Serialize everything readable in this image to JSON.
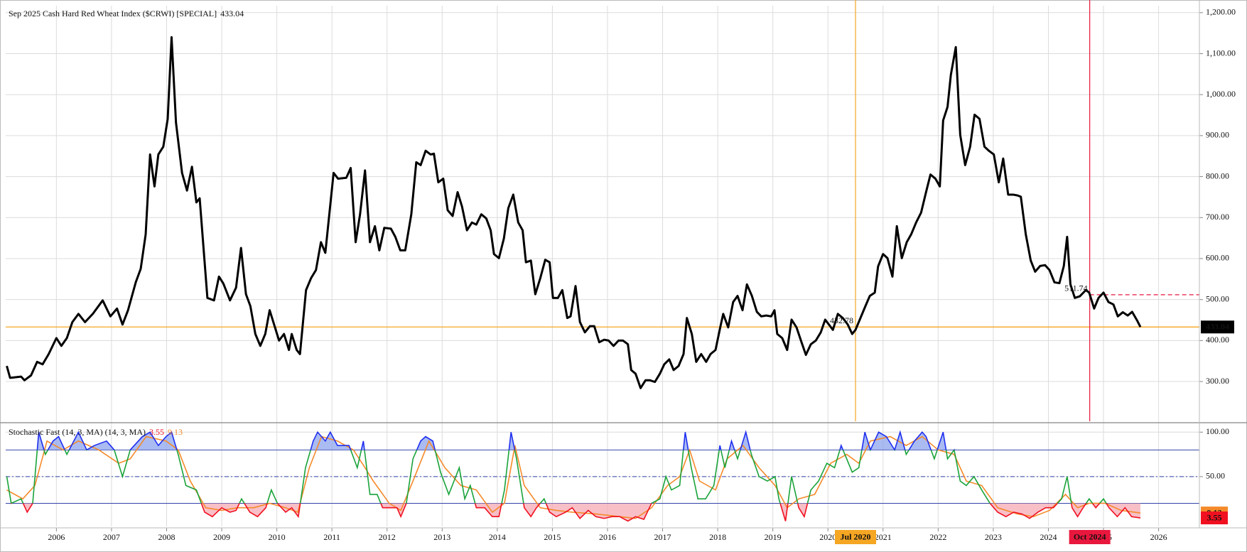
{
  "chart_data": [
    {
      "type": "line",
      "title": "Sep 2025 Cash Hard Red Wheat Index ($CRWI) [SPECIAL]",
      "color": "#000000",
      "last_color": "#f5a623",
      "grid": true,
      "xlim": [
        2005.08,
        2026.74
      ],
      "xticks": [
        2006,
        2007,
        2008,
        2009,
        2010,
        2011,
        2012,
        2013,
        2014,
        2015,
        2016,
        2017,
        2018,
        2019,
        2020,
        2021,
        2022,
        2023,
        2024,
        2025,
        2026
      ],
      "ylim": [
        203,
        1217
      ],
      "yticks": [
        {
          "value": 300,
          "label": "300.00"
        },
        {
          "value": 400,
          "label": "400.00"
        },
        {
          "value": 500,
          "label": "500.00"
        },
        {
          "value": 600,
          "label": "600.00"
        },
        {
          "value": 700,
          "label": "700.00"
        },
        {
          "value": 800,
          "label": "800.00"
        },
        {
          "value": 900,
          "label": "900.00"
        },
        {
          "value": 1000,
          "label": "1,000.00"
        },
        {
          "value": 1100,
          "label": "1,100.00"
        },
        {
          "value": 1200,
          "label": "1,200.00"
        }
      ],
      "x": [
        2005.1,
        2005.16,
        2005.36,
        2005.42,
        2005.54,
        2005.65,
        2005.75,
        2005.86,
        2006.0,
        2006.09,
        2006.19,
        2006.29,
        2006.4,
        2006.52,
        2006.66,
        2006.84,
        2006.98,
        2007.1,
        2007.2,
        2007.3,
        2007.44,
        2007.53,
        2007.62,
        2007.7,
        2007.78,
        2007.85,
        2007.94,
        2008.02,
        2008.09,
        2008.17,
        2008.28,
        2008.37,
        2008.46,
        2008.54,
        2008.6,
        2008.74,
        2008.86,
        2008.95,
        2009.03,
        2009.15,
        2009.26,
        2009.35,
        2009.44,
        2009.52,
        2009.61,
        2009.7,
        2009.79,
        2009.87,
        2009.96,
        2010.04,
        2010.13,
        2010.22,
        2010.27,
        2010.36,
        2010.42,
        2010.53,
        2010.62,
        2010.71,
        2010.8,
        2010.88,
        2010.97,
        2011.03,
        2011.11,
        2011.26,
        2011.34,
        2011.43,
        2011.51,
        2011.6,
        2011.69,
        2011.78,
        2011.86,
        2011.95,
        2012.07,
        2012.15,
        2012.24,
        2012.33,
        2012.44,
        2012.53,
        2012.61,
        2012.7,
        2012.79,
        2012.85,
        2012.93,
        2013.02,
        2013.1,
        2013.19,
        2013.28,
        2013.36,
        2013.45,
        2013.54,
        2013.62,
        2013.71,
        2013.8,
        2013.88,
        2013.94,
        2014.03,
        2014.12,
        2014.2,
        2014.29,
        2014.38,
        2014.46,
        2014.52,
        2014.61,
        2014.69,
        2014.78,
        2014.87,
        2014.95,
        2015.01,
        2015.1,
        2015.18,
        2015.27,
        2015.33,
        2015.42,
        2015.5,
        2015.59,
        2015.68,
        2015.76,
        2015.85,
        2015.94,
        2016.02,
        2016.11,
        2016.2,
        2016.28,
        2016.37,
        2016.43,
        2016.51,
        2016.6,
        2016.69,
        2016.77,
        2016.86,
        2016.95,
        2017.03,
        2017.12,
        2017.2,
        2017.29,
        2017.38,
        2017.44,
        2017.53,
        2017.61,
        2017.7,
        2017.79,
        2017.87,
        2017.96,
        2018.05,
        2018.1,
        2018.19,
        2018.28,
        2018.36,
        2018.45,
        2018.53,
        2018.62,
        2018.71,
        2018.79,
        2018.88,
        2018.97,
        2019.03,
        2019.08,
        2019.17,
        2019.26,
        2019.34,
        2019.43,
        2019.52,
        2019.6,
        2019.69,
        2019.78,
        2019.87,
        2019.95,
        2020.04,
        2020.09,
        2020.18,
        2020.27,
        2020.36,
        2020.44,
        2020.5,
        2020.59,
        2020.68,
        2020.76,
        2020.85,
        2020.91,
        2021.0,
        2021.08,
        2021.17,
        2021.25,
        2021.34,
        2021.43,
        2021.51,
        2021.6,
        2021.69,
        2021.78,
        2021.86,
        2021.95,
        2022.03,
        2022.09,
        2022.17,
        2022.23,
        2022.32,
        2022.4,
        2022.49,
        2022.58,
        2022.66,
        2022.75,
        2022.84,
        2022.92,
        2023.01,
        2023.1,
        2023.18,
        2023.27,
        2023.36,
        2023.44,
        2023.5,
        2023.59,
        2023.68,
        2023.76,
        2023.85,
        2023.94,
        2024.02,
        2024.11,
        2024.2,
        2024.28,
        2024.34,
        2024.4,
        2024.48,
        2024.57,
        2024.68,
        2024.74,
        2024.83,
        2024.91,
        2025.0,
        2025.09,
        2025.18,
        2025.26,
        2025.35,
        2025.44,
        2025.52,
        2025.61,
        2025.67
      ],
      "values": [
        338,
        309,
        312,
        303,
        315,
        348,
        342,
        367,
        406,
        387,
        406,
        445,
        465,
        445,
        465,
        498,
        459,
        478,
        439,
        474,
        542,
        575,
        659,
        854,
        776,
        854,
        873,
        941,
        1140,
        932,
        809,
        766,
        824,
        737,
        747,
        504,
        498,
        556,
        539,
        498,
        529,
        626,
        513,
        484,
        416,
        387,
        416,
        474,
        435,
        400,
        416,
        377,
        416,
        377,
        367,
        523,
        552,
        572,
        640,
        614,
        731,
        809,
        795,
        797,
        821,
        640,
        708,
        815,
        640,
        679,
        620,
        675,
        673,
        653,
        620,
        620,
        708,
        835,
        828,
        863,
        854,
        856,
        786,
        795,
        718,
        704,
        762,
        727,
        669,
        688,
        683,
        708,
        698,
        669,
        611,
        601,
        649,
        723,
        756,
        688,
        669,
        591,
        595,
        513,
        552,
        597,
        591,
        504,
        504,
        523,
        455,
        459,
        533,
        445,
        420,
        435,
        435,
        396,
        402,
        400,
        387,
        400,
        400,
        391,
        328,
        319,
        284,
        303,
        303,
        299,
        319,
        342,
        354,
        328,
        338,
        367,
        455,
        416,
        348,
        367,
        348,
        367,
        377,
        435,
        465,
        432,
        494,
        509,
        474,
        537,
        509,
        470,
        459,
        461,
        459,
        474,
        416,
        406,
        377,
        451,
        432,
        396,
        365,
        391,
        400,
        420,
        451,
        435,
        426,
        465,
        455,
        439,
        416,
        426,
        455,
        484,
        509,
        517,
        581,
        611,
        601,
        556,
        679,
        601,
        640,
        659,
        688,
        712,
        762,
        805,
        795,
        776,
        937,
        970,
        1048,
        1116,
        902,
        828,
        873,
        951,
        941,
        873,
        863,
        854,
        786,
        844,
        756,
        756,
        754,
        751,
        659,
        595,
        568,
        582,
        584,
        572,
        542,
        540,
        582,
        653,
        537,
        504,
        508,
        523,
        517,
        478,
        504,
        517,
        494,
        488,
        459,
        469,
        461,
        470,
        449,
        433.04
      ],
      "cursors": [
        {
          "x": 2020.5,
          "label": "Jul 2020",
          "value": 432.78,
          "color": "#f5a623",
          "dashed": false
        },
        {
          "x": 2024.75,
          "label": "Oct 2024",
          "value": 511.74,
          "color": "#e8173d",
          "dashed": true
        }
      ]
    },
    {
      "type": "stochastic",
      "title": "Stochastic  Fast (14, 3, MA)  (14, 3, MA)",
      "grid": true,
      "xlim": [
        2005.08,
        2026.74
      ],
      "ylim": [
        -6,
        109
      ],
      "yticks": [
        {
          "value": 50,
          "label": "50.00"
        },
        {
          "value": 100,
          "label": "100.00"
        }
      ],
      "overbought": 80,
      "oversold": 20,
      "midline": 50,
      "level_color": "#3344aa",
      "series": [
        {
          "color": "#1aa33a",
          "above_color": "#1f2ff0",
          "below_color": "#f01020",
          "above_fill": "#8ea4ee",
          "below_fill": "#f6a9b4",
          "x": [
            2005.1,
            2005.18,
            2005.36,
            2005.47,
            2005.57,
            2005.68,
            2005.8,
            2005.94,
            2006.04,
            2006.19,
            2006.4,
            2006.55,
            2006.69,
            2006.91,
            2007.05,
            2007.2,
            2007.34,
            2007.56,
            2007.7,
            2007.85,
            2007.99,
            2008.09,
            2008.21,
            2008.35,
            2008.54,
            2008.69,
            2008.83,
            2009.0,
            2009.15,
            2009.26,
            2009.36,
            2009.51,
            2009.65,
            2009.8,
            2009.9,
            2010.01,
            2010.16,
            2010.27,
            2010.39,
            2010.52,
            2010.66,
            2010.74,
            2010.88,
            2010.97,
            2011.1,
            2011.31,
            2011.46,
            2011.57,
            2011.69,
            2011.82,
            2011.92,
            2012.04,
            2012.18,
            2012.25,
            2012.35,
            2012.47,
            2012.61,
            2012.7,
            2012.83,
            2012.97,
            2013.12,
            2013.31,
            2013.41,
            2013.51,
            2013.62,
            2013.77,
            2013.91,
            2014.03,
            2014.13,
            2014.25,
            2014.35,
            2014.49,
            2014.61,
            2014.71,
            2014.85,
            2014.95,
            2015.07,
            2015.24,
            2015.36,
            2015.5,
            2015.65,
            2015.79,
            2015.94,
            2016.08,
            2016.22,
            2016.37,
            2016.51,
            2016.66,
            2016.8,
            2016.95,
            2017.06,
            2017.16,
            2017.31,
            2017.41,
            2017.52,
            2017.64,
            2017.78,
            2017.93,
            2018.04,
            2018.13,
            2018.25,
            2018.36,
            2018.51,
            2018.61,
            2018.75,
            2018.9,
            2019.04,
            2019.11,
            2019.23,
            2019.34,
            2019.47,
            2019.57,
            2019.69,
            2019.83,
            2019.98,
            2020.12,
            2020.24,
            2020.34,
            2020.44,
            2020.56,
            2020.67,
            2020.77,
            2020.92,
            2021.06,
            2021.21,
            2021.31,
            2021.42,
            2021.57,
            2021.71,
            2021.78,
            2021.93,
            2022.09,
            2022.17,
            2022.29,
            2022.4,
            2022.51,
            2022.65,
            2022.79,
            2022.94,
            2023.08,
            2023.23,
            2023.37,
            2023.52,
            2023.66,
            2023.81,
            2023.95,
            2024.09,
            2024.24,
            2024.34,
            2024.43,
            2024.53,
            2024.63,
            2024.74,
            2024.86,
            2025.0,
            2025.1,
            2025.25,
            2025.39,
            2025.51,
            2025.67
          ],
          "values": [
            50,
            20,
            25,
            10,
            20,
            100,
            75,
            90,
            95,
            75,
            100,
            80,
            85,
            90,
            80,
            50,
            80,
            95,
            100,
            85,
            95,
            100,
            75,
            40,
            35,
            10,
            5,
            15,
            10,
            12,
            25,
            10,
            5,
            15,
            35,
            20,
            10,
            15,
            5,
            60,
            90,
            100,
            90,
            100,
            85,
            85,
            60,
            90,
            30,
            30,
            15,
            15,
            15,
            5,
            20,
            70,
            90,
            95,
            90,
            55,
            30,
            60,
            25,
            40,
            15,
            15,
            5,
            5,
            35,
            100,
            70,
            15,
            5,
            15,
            25,
            10,
            5,
            10,
            15,
            3,
            12,
            5,
            3,
            5,
            5,
            0,
            5,
            2,
            20,
            25,
            50,
            35,
            40,
            100,
            60,
            25,
            25,
            40,
            85,
            60,
            90,
            70,
            100,
            75,
            50,
            45,
            50,
            25,
            0,
            50,
            15,
            5,
            35,
            45,
            65,
            60,
            85,
            70,
            55,
            60,
            100,
            80,
            100,
            95,
            80,
            100,
            75,
            90,
            100,
            95,
            70,
            100,
            70,
            80,
            45,
            40,
            50,
            35,
            20,
            10,
            5,
            10,
            8,
            3,
            10,
            15,
            15,
            25,
            50,
            15,
            5,
            15,
            25,
            15,
            25,
            15,
            5,
            15,
            5,
            3.55
          ]
        },
        {
          "color": "#f58a2a",
          "x": [
            2005.1,
            2005.39,
            2005.61,
            2005.83,
            2006.12,
            2006.4,
            2006.77,
            2007.13,
            2007.34,
            2007.63,
            2007.99,
            2008.21,
            2008.43,
            2008.71,
            2009.0,
            2009.29,
            2009.58,
            2009.87,
            2010.16,
            2010.38,
            2010.59,
            2010.81,
            2011.1,
            2011.39,
            2011.6,
            2011.75,
            2012.04,
            2012.25,
            2012.47,
            2012.76,
            2013.05,
            2013.34,
            2013.62,
            2013.91,
            2014.13,
            2014.32,
            2014.49,
            2014.78,
            2015.07,
            2015.36,
            2015.79,
            2016.22,
            2016.51,
            2016.8,
            2017.09,
            2017.31,
            2017.49,
            2017.67,
            2017.96,
            2018.17,
            2018.46,
            2018.75,
            2019.04,
            2019.26,
            2019.47,
            2019.76,
            2020.05,
            2020.34,
            2020.56,
            2020.77,
            2021.13,
            2021.42,
            2021.71,
            2022.0,
            2022.29,
            2022.51,
            2022.79,
            2023.08,
            2023.44,
            2023.73,
            2024.02,
            2024.31,
            2024.53,
            2024.74,
            2025.03,
            2025.32,
            2025.67
          ],
          "values": [
            35,
            25,
            40,
            90,
            80,
            90,
            80,
            65,
            70,
            95,
            90,
            80,
            45,
            15,
            12,
            15,
            15,
            20,
            15,
            10,
            60,
            95,
            90,
            80,
            60,
            45,
            20,
            12,
            45,
            90,
            60,
            40,
            35,
            10,
            20,
            85,
            40,
            15,
            12,
            10,
            8,
            5,
            3,
            15,
            40,
            50,
            80,
            45,
            35,
            70,
            85,
            60,
            40,
            15,
            25,
            30,
            65,
            75,
            65,
            90,
            95,
            85,
            95,
            80,
            75,
            45,
            40,
            15,
            8,
            5,
            12,
            30,
            15,
            20,
            20,
            12,
            9.13
          ]
        }
      ]
    }
  ]
}
